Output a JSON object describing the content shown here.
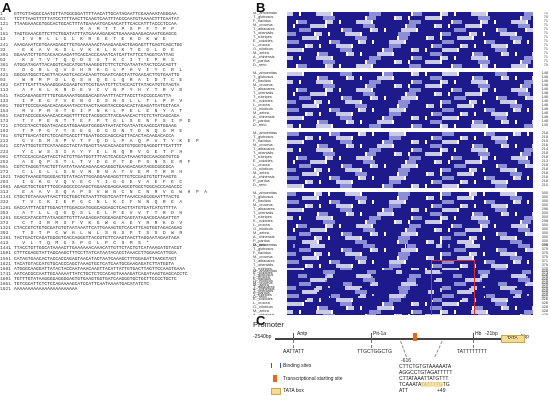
{
  "labels": {
    "a": "A",
    "b": "B",
    "c": "C"
  },
  "panelA": {
    "rows": [
      {
        "n": "1",
        "t": "GTTGTTAGGCCAATGTTATGGCGGATTTTAACATTGCATAGAATTCGAAAAATAGGGAA",
        "aa": false
      },
      {
        "n": "61",
        "t": "TCTTTAAGTTTTTATCCTTTTAACTTCAAGTCAATTTACCCAATGTAAAACTTTCAATAT",
        "aa": false
      },
      {
        "n": "121",
        "t": "TTAAGAAACGTGGCACTGCACTTTATGAAAATGACAACATTTCACCATTTACCCTCCAA",
        "aa": false
      },
      {
        "n": "1",
        "t": "                        M  A  M  T  T  P  S  P  F  T  P  P",
        "aa": true
      },
      {
        "n": "181",
        "t": "TAGTGAAACGTTCTTCTGGATATTTATGAAAAGAGACTGAAAAGAAGACAAATGGAGCG",
        "aa": false
      },
      {
        "n": "13",
        "t": "   I  V  R  L  L  G  L  K  R  G  E  T  E  K  D  K  W  E",
        "aa": true
      },
      {
        "n": "241",
        "t": "AAAGAAATCGTGAAAGAGCTTGTGAAAAAACTAAAGAAGACTGAGAGTTTGAGTCAGCTGG",
        "aa": false
      },
      {
        "n": "33",
        "t": "   E  K  A  V  K  S  L  V  K  K  L  K  K  T  E  G  L  D  E",
        "aa": true
      },
      {
        "n": "301",
        "t": "GGAAATCTTGTCACAACAAGATTCACCACCCAAATCATCATTATTCCTAGGTCATTAG",
        "aa": false
      },
      {
        "n": "53",
        "t": "   K  S  T  V  T  Q  Q  D  S  S  T  K  C  I  T  I  P  R  S",
        "aa": true
      },
      {
        "n": "361",
        "t": "ATGGATAGATTACAGGTCAGCATGGTAAAGGGTCTTCTCTGATAATATACTCCACAGTT",
        "aa": false
      },
      {
        "n": "73",
        "t": "   D  G  R  L  Q  V  S  H  R  K  G  L  P  H  V  I  Y  C  R  L",
        "aa": true
      },
      {
        "n": "421",
        "t": "GGCGATGGCTCAGTTACAAGTCACCACAAGTTGAATCAGCTATTGAACACTTGTGAATTG",
        "aa": false
      },
      {
        "n": "93",
        "t": "   W  R  M  P  D  L  Q  S  H  Q  E  L  Q  R  A  I  D  T  C  E",
        "aa": true
      },
      {
        "n": "481",
        "t": "CATTTCATTTAAAAGGGACGAAGTGTTCGTGAATCTTCTACCACTTATACATGTGTAGTA",
        "aa": false
      },
      {
        "n": "113",
        "t": "   A  F  H  L  K  R  D  E  V  C  V  N  P  Y  H  Y  T  R  V  D",
        "aa": true
      },
      {
        "n": "541",
        "t": "TACCAGAAGGTTTTGTGGAAAATGGGGACAGTAATTTACTTACCTTACCGCCAGTTA",
        "aa": false
      },
      {
        "n": "133",
        "t": "   I  P  E  G  F  V  E  N  G  D  S  N  S  L  L  T  L  P  P  V",
        "aa": true
      },
      {
        "n": "601",
        "t": "TGGTTCCCGAAGACACAGAAATACCTAACTAAGGTACCGGACACTAGAGATTATGCTACA",
        "aa": false
      },
      {
        "n": "153",
        "t": "   M  V  P  R  S  T  E  I  P  N  K  L  P  E  L  E  N  Y  A  T",
        "aa": true
      },
      {
        "n": "661",
        "t": "CAGTACCCGGAAAACACCAGGTTTTCCTACGGCCTTACGAAACACTTCTCTATCAGCAGA",
        "aa": false
      },
      {
        "n": "173",
        "t": "   T  Y  P  E  N  T  T  E  F  P  T  G  L  S  E  N  F  S  I  P  D",
        "aa": true
      },
      {
        "n": "721",
        "t": "CTCCCTACCTGGATACACCATGGAAGATGGGGATAATACTGATAATCAAGCCATGGAAG",
        "aa": false
      },
      {
        "n": "193",
        "t": "   T  P  P  G  Y  T  S  E  G  D  G  D  N  T  D  N  Q  G  M  E",
        "aa": true
      },
      {
        "n": "781",
        "t": "GTGTTGACATGTCTCCAGTCACCTTTGAATGCCCAGCCAGTTACACTACAAGACACCA",
        "aa": false
      },
      {
        "n": "213",
        "t": "   G  V  D  M  S  P  V  T  F  Q  D  L  P  A  Q  P  V  T  Y  K  E  P",
        "aa": true
      },
      {
        "n": "841",
        "t": "CCTATTGGTGTTCATAAGCCTACTATGAGTTAACACAACGTGTGGGTGAGGGTTTCATTTT",
        "aa": false
      },
      {
        "n": "233",
        "t": "   Y  C  W  S  S  I  A  Y  Y  E  L  N  Q  R  V  G  E  T  F  H",
        "aa": true
      },
      {
        "n": "901",
        "t": "CTTCCCACCACATACCTACTGTTGATGGTTTTACTCACCCATAAAGTGCCAACGGTGTCG",
        "aa": false
      },
      {
        "n": "253",
        "t": "   A  S  Q  P  S  T  L  T  V  D  G  F  T  D  P  S  N  S  E  R  F",
        "aa": true
      },
      {
        "n": "961",
        "t": "CGTCTAGGGTTACTGTTAATATAAACAGAACACAGGGTGAAGACAGATAGGCGGCGCA",
        "aa": false
      },
      {
        "n": "273",
        "t": "   C  L  G  L  L  S  N  V  N  R  N  A  T  V  E  M  T  R  R  H",
        "aa": true
      },
      {
        "n": "1021",
        "t": "TAGGTAAAGGTGGGGAGTGTATACATTGGAGGAAGAGGTTTGTCCGAGTGTGTTAAGTG",
        "aa": false
      },
      {
        "n": "293",
        "t": "   I  G  K  G  V  Q  V  E  C  Y  I  G  G  E  V  A  E  F  E  C",
        "aa": true
      },
      {
        "n": "1081",
        "t": "AGAGCTGCTGGTTTCGCAGGCCCCAAGCTGGAACGAGGAAGCGTGGCTGGCACCCAGACCC",
        "aa": false
      },
      {
        "n": "313",
        "t": "   E  A  A  V  S  Q  A  P  S  V  W  N  C  N  C  N  R  V  G  W  H  P  A",
        "aa": true
      },
      {
        "n": "1141",
        "t": "CTGCTGTAAAAATAACTTCCTGGCTGTAATTTGGTCAATTTAAACCAGCGGAATTTACTG",
        "aa": false
      },
      {
        "n": "333",
        "t": "   T  V  C  K  I  E  P  G  C  N  L  K  I  F  N  N  Q  R  E  A",
        "aa": true
      },
      {
        "n": "1201",
        "t": "GACCATTTACGTTGGAGTTTGGACGATGGGCAGGAGCTCAGTTATGTGATCATGTTTTA",
        "aa": false
      },
      {
        "n": "353",
        "t": "   A  T  L  L  Q  G  Q  S  L  G  L  P  E  V  V  T  T  R  D  H",
        "aa": true
      },
      {
        "n": "1261",
        "t": "GCACCATACGTTATAAGGTTGTTTAAGAGGATGGGAGAGTGAGTATAGACGCAAGATTGT",
        "aa": false
      },
      {
        "n": "373",
        "t": "   C  T  I  R  M  S  F  V  K  G  W  G  A  E  Y  R  R  K  D  V",
        "aa": true
      },
      {
        "n": "1321",
        "t": "CTACCGTCTGTGCGATGTGTAATAAATTCATTGAAAGTGTCACATTCAGTGGTAGACAGAG",
        "aa": false
      },
      {
        "n": "393",
        "t": "   T  S  T  P  C  W  H  L  W  L  S  N  S  P  T  S  S  D  W  R",
        "aa": true
      },
      {
        "n": "1381",
        "t": "TACTGACTCAGATGGGGTCACCAGGGTTACCGTGTTCAAGTAACTTAGGAATAGAATAGA",
        "aa": false
      },
      {
        "n": "413",
        "t": "   V  L  T  Q  M  G  S  P  G  L  P  C  S  M  S  *",
        "aa": true
      },
      {
        "n": "1441",
        "t": "TTACCTGTTGGCATAAAACTTGAAAAAACAAACATTGTTCTACTGTCATAAAGATGTACGT",
        "aa": false
      },
      {
        "n": "1501",
        "t": "CTTTCGAGGTATTAGCAAGCTTTCCTTATCATAATACACCTAAACCTTGGAACATTGGA",
        "aa": false
      },
      {
        "n": "1561",
        "t": "CATAGTGAACACTACCACCAGAGTAACATACTAATCAAAGCTTTGGAGATTAACGTAGT",
        "aa": false
      },
      {
        "n": "1621",
        "t": "TACATGTACCATGTGCACCCAGCTAAAGTGCTCATCAATGCGAAGAGATCTTATGGTA",
        "aa": false
      },
      {
        "n": "1681",
        "t": "ATGGGCAAGGATTATACTACCAATAAACAAGTTACATTATTGTGACTTAGTTCCAAGTGAAA",
        "aa": false
      },
      {
        "n": "1741",
        "t": "AATCACGCCAATTGCAAAAATTATCTGCTCTCCACAGTAAAAGATCAGATAAGTGAGCACCTC",
        "aa": false
      },
      {
        "n": "1801",
        "t": "TGTTTGTATAAGGGGAGGGGAGTGTGAAGTGGTGATCAAGGGTGCTGCTTCCCCTGCTC",
        "aa": false
      },
      {
        "n": "1861",
        "t": "TGTCGCATTCTCTCCAGAAAAGCATCCATTCAATAAAATGACATATCTC",
        "aa": false
      },
      {
        "n": "1921",
        "t": "AAAAAAAAAAAAAAAAAAAAAAA",
        "aa": false
      }
    ]
  },
  "panelB": {
    "species": [
      "M._amoenitas",
      "T._globosus",
      "F._flavidus",
      "M._croceus",
      "T._albacares",
      "T._orientalis",
      "T._rubripes",
      "E._coioides",
      "L._crocea",
      "O._niloticus",
      "M._zebra",
      "A._chinensis",
      "P._pardus",
      "D._rerio"
    ],
    "species_block2": [
      "M._amoenitas",
      "T._globosus",
      "F._flavidus",
      "M._croceus",
      "T._albacares",
      "T._orientalis",
      "T._rubripes",
      "E._coioides",
      "L._crocea",
      "O._niloticus",
      "M._zebra",
      "A._chinensis",
      "P._pardus",
      "D._rerio"
    ],
    "species_short": [
      "M._amoenitas",
      "T._globosus",
      "F._flavidus",
      "M._croceus",
      "T._albacares",
      "T._orientalis",
      "T._rubripes",
      "E._coioides",
      "L._crocea",
      "O._niloticus",
      "M._zebra",
      "A._chinensis",
      "P._pardus",
      "D._rerio"
    ],
    "block_numbers": [
      [
        "71",
        "70",
        "71",
        "71",
        "71",
        "71",
        "71",
        "71",
        "71",
        "71",
        "71",
        "71",
        "71",
        "70"
      ],
      [
        "148",
        "148",
        "146",
        "148",
        "146",
        "148",
        "148",
        "145",
        "148",
        "148",
        "148",
        "148",
        "148",
        "140"
      ],
      [
        "218",
        "218",
        "215",
        "216",
        "214",
        "218",
        "218",
        "213",
        "218",
        "218",
        "218",
        "218",
        "218",
        "210"
      ],
      [
        "300",
        "300",
        "300",
        "300",
        "296",
        "300",
        "300",
        "298",
        "300",
        "300",
        "300",
        "300",
        "300",
        "296"
      ],
      [
        "375",
        "375",
        "375",
        "375",
        "371",
        "375",
        "375",
        "373",
        "375",
        "375",
        "375",
        "375",
        "375",
        "371"
      ],
      [
        "428",
        "428",
        "428",
        "428",
        "424",
        "428",
        "428",
        "426",
        "428",
        "428",
        "428",
        "428",
        "428",
        "424"
      ]
    ],
    "colors": {
      "conserved": "#1f1a8c",
      "partial": "#8c8fd6",
      "light": "#c9cbe8"
    }
  },
  "panelC": {
    "title": "Promoter",
    "pos_left": "-2540bp",
    "pos_right": "-1bp",
    "markers": [
      {
        "label": "Antp",
        "seq": "AATTATT"
      },
      {
        "label": "Pit-1a",
        "seq": "TTGCTGGCTG"
      },
      {
        "label": "Hb",
        "seq": "TATTTTTTTT"
      }
    ],
    "tss_label": "-21bp",
    "tata_label": "TATA",
    "tss_pos": "-616",
    "tss_seq_lines": [
      "CTTCTGTGTAAAAATA",
      "AGGCCTGTAGATTTTT",
      "CTTATAAATTATGTTT",
      "TCAAATATATTTTGTG",
      "ATT",
      "+49"
    ],
    "legend": [
      {
        "label": "Binding sites",
        "color": "#3b5aa8"
      },
      {
        "label": "Transcriptional starting site",
        "color": "#e46a19"
      },
      {
        "label": "TATA box",
        "color": "#f6dc92"
      }
    ]
  }
}
